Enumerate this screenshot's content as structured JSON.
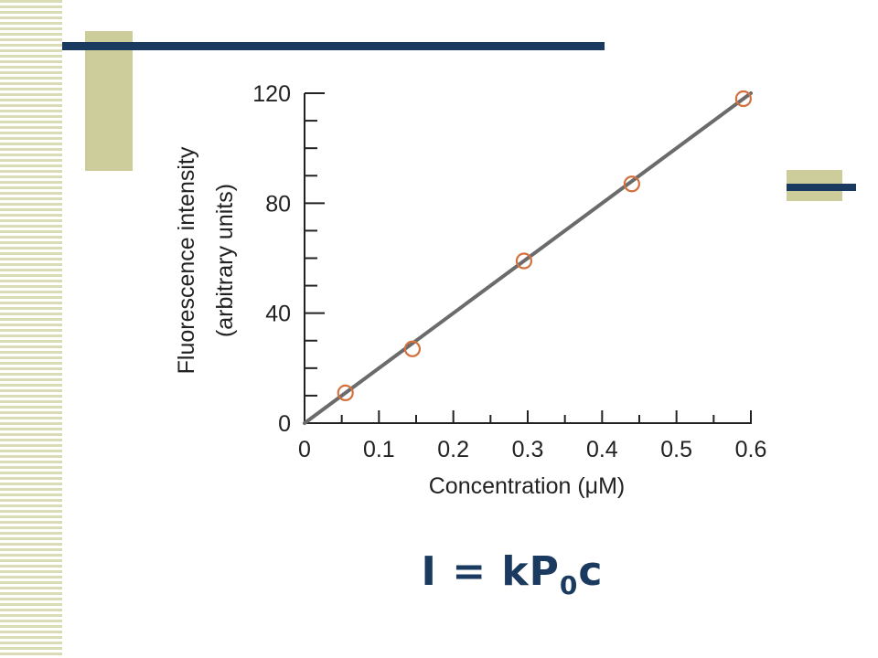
{
  "chart_data": {
    "type": "scatter",
    "xlabel": "Concentration (μM)",
    "ylabel_line1": "Fluorescence intensity",
    "ylabel_line2": "(arbitrary units)",
    "xlim": [
      0,
      0.6
    ],
    "ylim": [
      0,
      120
    ],
    "x_major_ticks": [
      "0",
      "0.1",
      "0.2",
      "0.3",
      "0.4",
      "0.5",
      "0.6"
    ],
    "y_major_ticks": [
      "0",
      "40",
      "80",
      "120"
    ],
    "points": [
      {
        "x": 0.055,
        "y": 11
      },
      {
        "x": 0.145,
        "y": 27
      },
      {
        "x": 0.295,
        "y": 59
      },
      {
        "x": 0.44,
        "y": 87
      },
      {
        "x": 0.59,
        "y": 118
      }
    ],
    "fit_line": {
      "x": [
        0,
        0.6
      ],
      "y": [
        0,
        120
      ]
    },
    "colors": {
      "marker": "#d2703e",
      "line": "#6b6b6b",
      "axis": "#222222"
    }
  },
  "formula": {
    "main": "I = kP",
    "subscript": "0",
    "tail": "c"
  }
}
